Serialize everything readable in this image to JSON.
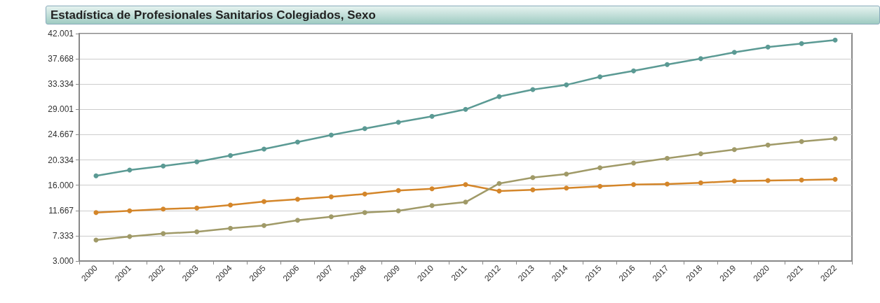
{
  "chart_data": {
    "type": "line",
    "title": "Estadística de Profesionales Sanitarios Colegiados, Sexo",
    "categories": [
      "2000",
      "2001",
      "2002",
      "2003",
      "2004",
      "2005",
      "2006",
      "2007",
      "2008",
      "2009",
      "2010",
      "2011",
      "2012",
      "2013",
      "2014",
      "2015",
      "2016",
      "2017",
      "2018",
      "2019",
      "2020",
      "2021",
      "2022"
    ],
    "series": [
      {
        "color": "#5b9a94",
        "values": [
          17600,
          18600,
          19300,
          20000,
          21100,
          22200,
          23400,
          24600,
          25700,
          26800,
          27800,
          29000,
          31200,
          32400,
          33200,
          34600,
          35600,
          36700,
          37700,
          38800,
          39700,
          40300,
          40900
        ]
      },
      {
        "color": "#d4862a",
        "values": [
          11300,
          11600,
          11900,
          12100,
          12600,
          13200,
          13600,
          14000,
          14500,
          15100,
          15400,
          16100,
          15000,
          15200,
          15500,
          15800,
          16100,
          16200,
          16400,
          16700,
          16800,
          16900,
          17000
        ]
      },
      {
        "color": "#a09a68",
        "values": [
          6600,
          7200,
          7700,
          8000,
          8600,
          9100,
          10000,
          10600,
          11300,
          11600,
          12500,
          13100,
          16300,
          17300,
          17900,
          19000,
          19800,
          20600,
          21400,
          22100,
          22900,
          23500,
          24000
        ]
      }
    ],
    "ylim": [
      3000,
      42001
    ],
    "yticks": [
      {
        "value": 3000,
        "label": "3.000"
      },
      {
        "value": 7333,
        "label": "7.333"
      },
      {
        "value": 11667,
        "label": "11.667"
      },
      {
        "value": 16000,
        "label": "16.000"
      },
      {
        "value": 20334,
        "label": "20.334"
      },
      {
        "value": 24667,
        "label": "24.667"
      },
      {
        "value": 29001,
        "label": "29.001"
      },
      {
        "value": 33334,
        "label": "33.334"
      },
      {
        "value": 37668,
        "label": "37.668"
      },
      {
        "value": 42001,
        "label": "42.001"
      }
    ],
    "grid": "y",
    "marker": "circle",
    "line_style": "solid"
  }
}
